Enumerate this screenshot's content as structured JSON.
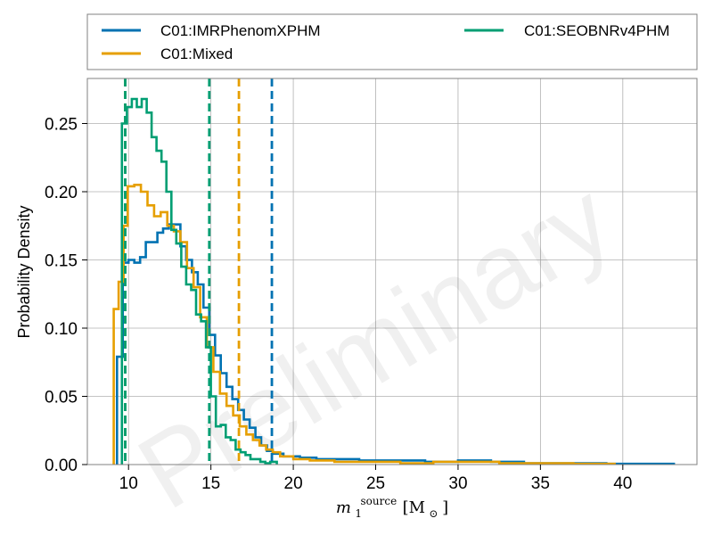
{
  "chart_data": {
    "type": "histogram",
    "title": "",
    "xlabel": {
      "symbol": "m",
      "superscript": "source",
      "subscript": "1",
      "unit": "[M",
      "unit_sub": "⊙",
      "unit_close": "]"
    },
    "ylabel": "Probability Density",
    "xlim": [
      7.5,
      44.5
    ],
    "ylim": [
      0,
      0.283
    ],
    "xticks": [
      10,
      15,
      20,
      25,
      30,
      35,
      40
    ],
    "xtick_labels": [
      "10",
      "15",
      "20",
      "25",
      "30",
      "35",
      "40"
    ],
    "yticks": [
      0,
      0.05,
      0.1,
      0.15,
      0.2,
      0.25
    ],
    "ytick_labels": [
      "0.00",
      "0.05",
      "0.10",
      "0.15",
      "0.20",
      "0.25"
    ],
    "grid": true,
    "legend": {
      "placement": "top",
      "columns": 2
    },
    "watermark": "Preliminary",
    "series": [
      {
        "name": "C01:IMRPhenomXPHM",
        "color": "#0072b2",
        "edges": [
          9.3,
          9.65,
          10.0,
          10.35,
          10.7,
          11.05,
          11.4,
          11.75,
          12.1,
          12.45,
          12.8,
          13.15,
          13.5,
          13.85,
          14.2,
          14.55,
          14.9,
          15.25,
          15.6,
          15.95,
          16.3,
          16.65,
          17.0,
          17.35,
          17.7,
          18.05,
          18.4,
          18.75,
          19.4,
          20.4,
          21.4,
          22.4,
          24.0,
          26.0,
          28.0,
          30.0,
          32.0,
          34.0,
          37.0,
          39.0,
          43.1
        ],
        "density": [
          0.079,
          0.148,
          0.15,
          0.148,
          0.152,
          0.163,
          0.163,
          0.17,
          0.173,
          0.176,
          0.176,
          0.16,
          0.15,
          0.141,
          0.132,
          0.115,
          0.095,
          0.08,
          0.067,
          0.057,
          0.048,
          0.04,
          0.033,
          0.027,
          0.02,
          0.014,
          0.01,
          0.008,
          0.006,
          0.005,
          0.004,
          0.004,
          0.003,
          0.003,
          0.002,
          0.003,
          0.002,
          0.001,
          0.001,
          0.0005
        ],
        "interval_lines": [
          9.8,
          18.7
        ]
      },
      {
        "name": "C01:Mixed",
        "color": "#e69f00",
        "edges": [
          9.1,
          9.4,
          9.7,
          9.95,
          10.35,
          10.75,
          11.15,
          11.55,
          11.95,
          12.35,
          12.75,
          13.15,
          13.55,
          13.95,
          14.35,
          14.75,
          15.15,
          15.55,
          15.95,
          16.35,
          16.75,
          17.15,
          17.55,
          17.95,
          18.35,
          18.75,
          19.2,
          20.0,
          21.0,
          22.5,
          24.5,
          26.5,
          28.5,
          30.5,
          32.5,
          34.5,
          37.0,
          39.5
        ],
        "density": [
          0.114,
          0.134,
          0.175,
          0.204,
          0.205,
          0.2,
          0.19,
          0.182,
          0.185,
          0.175,
          0.171,
          0.163,
          0.144,
          0.13,
          0.108,
          0.086,
          0.068,
          0.052,
          0.043,
          0.036,
          0.028,
          0.022,
          0.018,
          0.014,
          0.011,
          0.009,
          0.006,
          0.004,
          0.003,
          0.002,
          0.002,
          0.001,
          0.002,
          0.002,
          0.001,
          0.001,
          0.0005
        ],
        "interval_lines": [
          9.8,
          16.7
        ]
      },
      {
        "name": "C01:SEOBNRv4PHM",
        "color": "#009e73",
        "edges": [
          9.6,
          9.9,
          10.2,
          10.5,
          10.8,
          11.1,
          11.4,
          11.7,
          12.0,
          12.3,
          12.6,
          12.9,
          13.2,
          13.5,
          13.8,
          14.1,
          14.4,
          14.7,
          15.0,
          15.3,
          15.6,
          15.9,
          16.2,
          16.5,
          16.8,
          17.1,
          17.4,
          17.7,
          18.0,
          18.3,
          18.6,
          19.0
        ],
        "density": [
          0.25,
          0.262,
          0.268,
          0.262,
          0.268,
          0.258,
          0.24,
          0.23,
          0.222,
          0.2,
          0.172,
          0.162,
          0.145,
          0.132,
          0.128,
          0.11,
          0.105,
          0.086,
          0.05,
          0.028,
          0.029,
          0.02,
          0.018,
          0.011,
          0.009,
          0.007,
          0.004,
          0.004,
          0.002,
          0.001,
          0.002
        ],
        "interval_lines": [
          9.8,
          14.9
        ]
      }
    ]
  }
}
